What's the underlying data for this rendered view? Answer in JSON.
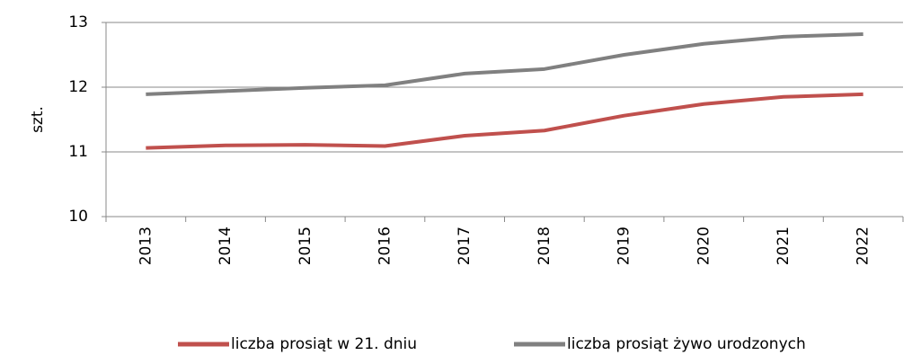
{
  "chart_data": {
    "type": "line",
    "y_label": "szt.",
    "categories": [
      "2013",
      "2014",
      "2015",
      "2016",
      "2017",
      "2018",
      "2019",
      "2020",
      "2021",
      "2022"
    ],
    "series": [
      {
        "name": "liczba prosiąt w 21. dniu",
        "color": "#c0504d",
        "values": [
          11.06,
          11.1,
          11.11,
          11.09,
          11.25,
          11.33,
          11.56,
          11.74,
          11.85,
          11.89
        ]
      },
      {
        "name": "liczba prosiąt żywo urodzonych",
        "color": "#808080",
        "values": [
          11.89,
          11.94,
          11.99,
          12.03,
          12.21,
          12.28,
          12.5,
          12.67,
          12.78,
          12.82
        ]
      }
    ],
    "ylim": [
      10,
      13
    ],
    "yticks": [
      10,
      11,
      12,
      13
    ],
    "grid": true,
    "legend": "bottom"
  }
}
